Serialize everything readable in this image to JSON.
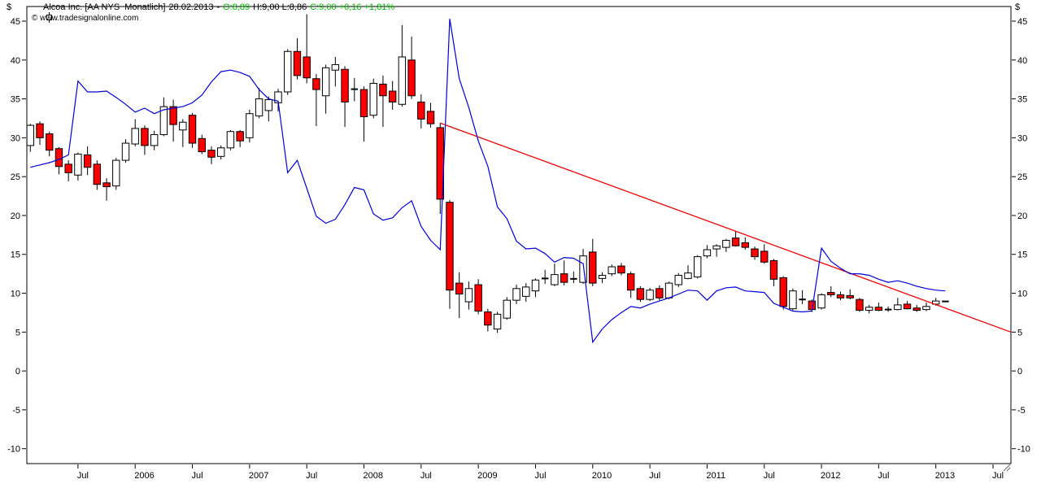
{
  "header": {
    "instrument": "Alcoa Inc. [AA NYS  Monatlich]",
    "date": "28.02.2013",
    "separator": "-",
    "open": "O:8,89",
    "high_low": "H:9,00 L:8,86",
    "close_change": "C:9,00 +0,16 +1,81%",
    "watermark": "© www.tradesignalonline.com"
  },
  "colors": {
    "background": "#ffffff",
    "frame": "#000000",
    "text": "#000000",
    "up_candle": "#ffffff",
    "down_candle": "#ff0000",
    "wick": "#000000",
    "indicator_line": "#0000dd",
    "trendline": "#ee0000",
    "quote_green": "#00bb00",
    "grip": "#666666"
  },
  "chart_data": {
    "type": "candlestick",
    "title": "Alcoa Inc. [AA NYS Monatlich] - monthly candles with blue indicator overlay and red downtrend line",
    "grid": false,
    "legend": false,
    "y_axis": {
      "unit": "$",
      "min": -10,
      "max": 45,
      "step": 5,
      "labels": [
        "45",
        "40",
        "35",
        "30",
        "25",
        "20",
        "15",
        "10",
        "5",
        "0",
        "-5",
        "-10"
      ]
    },
    "x_axis": {
      "first_month": "Feb 2005",
      "last_month": "Feb 2013",
      "tick_labels": [
        {
          "label": "Jul",
          "month_index": 5
        },
        {
          "label": "2006",
          "month_index": 11
        },
        {
          "label": "Jul",
          "month_index": 17
        },
        {
          "label": "2007",
          "month_index": 23
        },
        {
          "label": "Jul",
          "month_index": 29
        },
        {
          "label": "2008",
          "month_index": 35
        },
        {
          "label": "Jul",
          "month_index": 41
        },
        {
          "label": "2009",
          "month_index": 47
        },
        {
          "label": "Jul",
          "month_index": 53
        },
        {
          "label": "2010",
          "month_index": 59
        },
        {
          "label": "Jul",
          "month_index": 65
        },
        {
          "label": "2011",
          "month_index": 71
        },
        {
          "label": "Jul",
          "month_index": 77
        },
        {
          "label": "2012",
          "month_index": 83
        },
        {
          "label": "Jul",
          "month_index": 89
        },
        {
          "label": "2013",
          "month_index": 95
        },
        {
          "label": "Jul",
          "month_index": 101
        }
      ]
    },
    "candles_format": [
      "date",
      "open",
      "high",
      "low",
      "close"
    ],
    "candles": [
      [
        "Feb 2005",
        29.0,
        31.8,
        28.2,
        31.6
      ],
      [
        "Mar 2005",
        31.8,
        32.1,
        29.1,
        30.0
      ],
      [
        "Apr 2005",
        30.5,
        30.8,
        27.6,
        28.4
      ],
      [
        "May 2005",
        28.6,
        28.8,
        25.3,
        26.3
      ],
      [
        "Jun 2005",
        26.6,
        27.1,
        24.4,
        25.5
      ],
      [
        "Jul 2005",
        25.2,
        28.1,
        24.5,
        27.9
      ],
      [
        "Aug 2005",
        27.8,
        28.9,
        25.2,
        26.2
      ],
      [
        "Sep 2005",
        26.6,
        27.1,
        23.3,
        24.0
      ],
      [
        "Oct 2005",
        24.2,
        24.8,
        21.9,
        23.7
      ],
      [
        "Nov 2005",
        23.8,
        27.4,
        23.3,
        27.1
      ],
      [
        "Dec 2005",
        27.1,
        29.8,
        26.8,
        29.3
      ],
      [
        "Jan 2006",
        29.2,
        32.4,
        28.9,
        31.2
      ],
      [
        "Feb 2006",
        31.2,
        31.6,
        27.8,
        29.0
      ],
      [
        "Mar 2006",
        29.0,
        30.9,
        28.4,
        30.4
      ],
      [
        "Apr 2006",
        30.4,
        35.2,
        30.2,
        34.0
      ],
      [
        "May 2006",
        34.0,
        34.9,
        29.5,
        31.7
      ],
      [
        "Jun 2006",
        31.0,
        32.4,
        28.8,
        32.0
      ],
      [
        "Jul 2006",
        32.9,
        33.2,
        28.7,
        29.3
      ],
      [
        "Aug 2006",
        29.9,
        30.4,
        27.9,
        28.2
      ],
      [
        "Sep 2006",
        28.4,
        28.9,
        26.6,
        27.5
      ],
      [
        "Oct 2006",
        27.6,
        29.0,
        27.2,
        28.7
      ],
      [
        "Nov 2006",
        28.7,
        31.0,
        28.4,
        30.8
      ],
      [
        "Dec 2006",
        30.8,
        31.0,
        28.8,
        29.6
      ],
      [
        "Jan 2007",
        30.0,
        33.6,
        29.4,
        33.1
      ],
      [
        "Feb 2007",
        32.8,
        36.4,
        32.5,
        35.0
      ],
      [
        "Mar 2007",
        33.5,
        35.3,
        32.1,
        34.9
      ],
      [
        "Apr 2007",
        34.5,
        36.3,
        33.4,
        35.9
      ],
      [
        "May 2007",
        35.9,
        41.4,
        35.5,
        41.1
      ],
      [
        "Jun 2007",
        41.1,
        42.8,
        37.5,
        38.0
      ],
      [
        "Jul 2007",
        40.4,
        45.9,
        37.0,
        37.7
      ],
      [
        "Aug 2007",
        37.6,
        38.2,
        31.5,
        36.2
      ],
      [
        "Sep 2007",
        35.4,
        39.4,
        33.1,
        39.0
      ],
      [
        "Oct 2007",
        38.7,
        40.4,
        36.6,
        39.4
      ],
      [
        "Nov 2007",
        38.8,
        39.2,
        31.4,
        34.6
      ],
      [
        "Dec 2007",
        36.2,
        37.7,
        34.7,
        36.3
      ],
      [
        "Jan 2008",
        36.2,
        36.6,
        29.5,
        32.7
      ],
      [
        "Feb 2008",
        32.9,
        37.6,
        32.5,
        37.0
      ],
      [
        "Mar 2008",
        36.9,
        38.0,
        31.4,
        35.4
      ],
      [
        "Apr 2008",
        36.0,
        37.3,
        33.6,
        34.6
      ],
      [
        "May 2008",
        34.3,
        44.5,
        34.0,
        40.4
      ],
      [
        "Jun 2008",
        40.0,
        43.0,
        35.0,
        35.4
      ],
      [
        "Jul 2008",
        34.6,
        35.6,
        31.2,
        32.4
      ],
      [
        "Aug 2008",
        33.4,
        34.5,
        31.3,
        31.8
      ],
      [
        "Sep 2008",
        31.3,
        31.9,
        20.2,
        22.1
      ],
      [
        "Oct 2008",
        21.7,
        22.0,
        8.0,
        10.4
      ],
      [
        "Nov 2008",
        11.3,
        12.7,
        6.8,
        9.9
      ],
      [
        "Dec 2008",
        8.9,
        11.5,
        7.9,
        10.6
      ],
      [
        "Jan 2009",
        11.1,
        11.8,
        7.3,
        7.7
      ],
      [
        "Feb 2009",
        7.6,
        8.0,
        5.1,
        5.9
      ],
      [
        "Mar 2009",
        5.4,
        7.6,
        4.9,
        7.3
      ],
      [
        "Apr 2009",
        6.8,
        9.5,
        6.6,
        9.1
      ],
      [
        "May 2009",
        9.1,
        11.1,
        8.6,
        10.6
      ],
      [
        "Jun 2009",
        9.6,
        11.3,
        8.9,
        10.8
      ],
      [
        "Jul 2009",
        10.3,
        11.9,
        9.5,
        11.7
      ],
      [
        "Aug 2009",
        11.9,
        13.0,
        11.2,
        11.9
      ],
      [
        "Sep 2009",
        11.1,
        13.8,
        10.9,
        12.4
      ],
      [
        "Oct 2009",
        12.5,
        14.2,
        11.0,
        11.4
      ],
      [
        "Nov 2009",
        11.8,
        12.8,
        11.3,
        11.9
      ],
      [
        "Dec 2009",
        11.4,
        15.7,
        11.2,
        14.8
      ],
      [
        "Jan 2010",
        15.3,
        17.0,
        10.9,
        11.3
      ],
      [
        "Feb 2010",
        11.9,
        12.7,
        11.3,
        12.3
      ],
      [
        "Mar 2010",
        12.5,
        13.7,
        12.2,
        13.4
      ],
      [
        "Apr 2010",
        13.5,
        13.9,
        12.3,
        12.6
      ],
      [
        "May 2010",
        12.5,
        12.8,
        9.4,
        10.4
      ],
      [
        "Jun 2010",
        10.6,
        10.9,
        8.9,
        9.2
      ],
      [
        "Jul 2010",
        9.2,
        10.7,
        9.0,
        10.4
      ],
      [
        "Aug 2010",
        10.6,
        11.0,
        9.1,
        9.4
      ],
      [
        "Sep 2010",
        9.4,
        11.5,
        9.2,
        11.3
      ],
      [
        "Oct 2010",
        11.1,
        12.6,
        10.8,
        12.3
      ],
      [
        "Nov 2010",
        11.9,
        13.6,
        11.8,
        12.6
      ],
      [
        "Dec 2010",
        12.1,
        14.9,
        11.9,
        14.7
      ],
      [
        "Jan 2011",
        14.8,
        16.2,
        14.5,
        15.6
      ],
      [
        "Feb 2011",
        15.7,
        16.3,
        14.7,
        16.1
      ],
      [
        "Mar 2011",
        15.9,
        17.0,
        15.3,
        16.8
      ],
      [
        "Apr 2011",
        17.1,
        18.0,
        16.0,
        16.1
      ],
      [
        "May 2011",
        16.5,
        17.2,
        15.6,
        15.9
      ],
      [
        "Jun 2011",
        15.7,
        16.0,
        14.3,
        14.7
      ],
      [
        "Jul 2011",
        15.4,
        16.3,
        13.8,
        14.0
      ],
      [
        "Aug 2011",
        14.2,
        14.4,
        10.9,
        11.8
      ],
      [
        "Sep 2011",
        12.0,
        12.2,
        7.9,
        8.3
      ],
      [
        "Oct 2011",
        8.0,
        10.6,
        7.8,
        10.3
      ],
      [
        "Nov 2011",
        9.2,
        10.4,
        8.6,
        9.2
      ],
      [
        "Dec 2011",
        9.0,
        9.2,
        7.6,
        7.9
      ],
      [
        "Jan 2012",
        8.1,
        10.0,
        7.9,
        9.8
      ],
      [
        "Feb 2012",
        10.1,
        10.9,
        9.5,
        9.8
      ],
      [
        "Mar 2012",
        9.8,
        10.2,
        9.1,
        9.4
      ],
      [
        "Apr 2012",
        9.7,
        10.5,
        9.2,
        9.4
      ],
      [
        "May 2012",
        9.2,
        9.4,
        7.6,
        7.8
      ],
      [
        "Jun 2012",
        7.8,
        8.5,
        7.4,
        8.2
      ],
      [
        "Jul 2012",
        8.2,
        8.8,
        7.7,
        7.8
      ],
      [
        "Aug 2012",
        7.9,
        8.3,
        7.6,
        7.9
      ],
      [
        "Sep 2012",
        7.9,
        9.4,
        7.8,
        8.5
      ],
      [
        "Oct 2012",
        8.6,
        9.0,
        7.9,
        8.0
      ],
      [
        "Nov 2012",
        8.1,
        8.5,
        7.6,
        7.8
      ],
      [
        "Dec 2012",
        7.9,
        8.8,
        7.7,
        8.3
      ],
      [
        "Jan 2013",
        8.6,
        9.4,
        8.4,
        9.0
      ],
      [
        "Feb 2013",
        8.89,
        9.0,
        8.86,
        9.0
      ]
    ],
    "series": [
      {
        "name": "blue-indicator-line",
        "values": [
          26.2,
          26.5,
          26.8,
          27.2,
          27.8,
          37.3,
          35.9,
          35.9,
          36.0,
          35.2,
          34.3,
          33.3,
          33.8,
          33.1,
          33.6,
          33.8,
          34.0,
          34.5,
          35.5,
          37.2,
          38.5,
          38.7,
          38.4,
          37.9,
          36.2,
          35.0,
          34.7,
          25.5,
          27.1,
          23.5,
          19.9,
          19.0,
          19.5,
          21.4,
          23.6,
          23.3,
          20.2,
          19.4,
          19.7,
          21.0,
          21.9,
          18.6,
          16.8,
          15.6,
          45.3,
          37.6,
          33.9,
          29.6,
          26.3,
          21.1,
          19.6,
          16.7,
          15.7,
          15.8,
          15.1,
          14.0,
          14.6,
          14.5,
          13.8,
          3.7,
          5.4,
          6.6,
          7.5,
          8.3,
          8.1,
          8.6,
          9.0,
          9.4,
          9.9,
          10.4,
          10.3,
          9.1,
          10.3,
          10.7,
          10.8,
          10.3,
          10.2,
          10.1,
          8.7,
          8.2,
          7.7,
          7.6,
          7.7,
          15.8,
          14.1,
          13.2,
          12.5,
          12.5,
          12.3,
          11.8,
          11.4,
          11.6,
          11.3,
          10.9,
          10.6,
          10.4,
          10.3
        ]
      }
    ],
    "trendline": {
      "name": "red-downtrend-line",
      "start_date": "Sep 2008",
      "start_month_index": 43,
      "start_value": 31.9,
      "end_at": "right-edge",
      "end_value": 5.0
    }
  }
}
